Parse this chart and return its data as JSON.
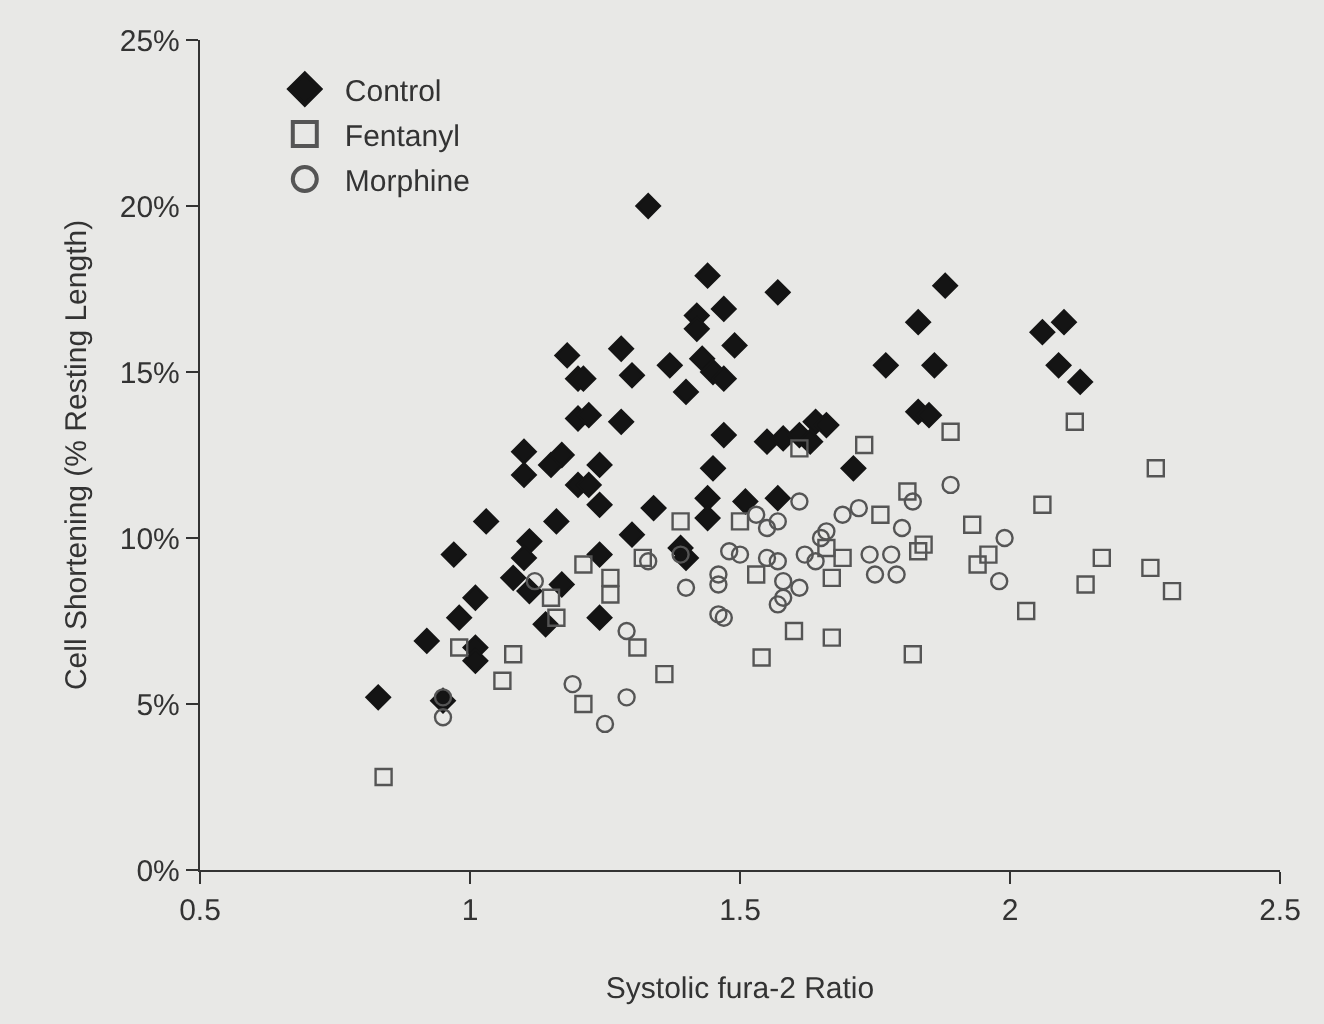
{
  "chart_data": {
    "type": "scatter",
    "xlabel": "Systolic fura-2 Ratio",
    "ylabel": "Cell Shortening (% Resting Length)",
    "xlim": [
      0.5,
      2.5
    ],
    "xticks": [
      0.5,
      1,
      1.5,
      2,
      2.5
    ],
    "ylim": [
      0,
      25
    ],
    "yticks": [
      {
        "value": 0,
        "label": "0%"
      },
      {
        "value": 5,
        "label": "5%"
      },
      {
        "value": 10,
        "label": "10%"
      },
      {
        "value": 15,
        "label": "15%"
      },
      {
        "value": 20,
        "label": "20%"
      },
      {
        "value": 25,
        "label": "25%"
      }
    ],
    "grid": false,
    "legend": "top left",
    "series": [
      {
        "name": "Control",
        "color": "#141414",
        "marker": "diamond",
        "x": [
          0.83,
          0.95,
          0.92,
          1.01,
          1.01,
          0.98,
          1.01,
          0.97,
          1.03,
          1.1,
          1.1,
          1.15,
          1.17,
          1.18,
          1.2,
          1.2,
          1.2,
          1.16,
          1.11,
          1.1,
          1.08,
          1.11,
          1.14,
          1.17,
          1.33,
          1.44,
          1.57,
          1.47,
          1.42,
          1.42,
          1.49,
          1.28,
          1.21,
          1.3,
          1.37,
          1.43,
          1.45,
          1.47,
          1.4,
          1.22,
          1.28,
          1.47,
          1.55,
          1.58,
          1.61,
          1.64,
          1.66,
          1.63,
          1.71,
          1.45,
          1.24,
          1.22,
          1.24,
          1.34,
          1.44,
          1.44,
          1.51,
          1.57,
          1.3,
          1.24,
          1.39,
          1.4,
          1.24,
          1.88,
          1.83,
          1.86,
          1.83,
          1.85,
          2.06,
          2.1,
          2.09,
          2.13,
          1.77
        ],
        "values": [
          5.2,
          5.1,
          6.9,
          6.7,
          6.3,
          7.6,
          8.2,
          9.5,
          10.5,
          12.6,
          11.9,
          12.2,
          12.5,
          15.5,
          14.8,
          13.6,
          11.6,
          10.5,
          9.9,
          9.4,
          8.8,
          8.4,
          7.4,
          8.6,
          20.0,
          17.9,
          17.4,
          16.9,
          16.7,
          16.3,
          15.8,
          15.7,
          14.8,
          14.9,
          15.2,
          15.4,
          15.0,
          14.8,
          14.4,
          13.7,
          13.5,
          13.1,
          12.9,
          13.0,
          13.1,
          13.5,
          13.4,
          12.9,
          12.1,
          12.1,
          12.2,
          11.6,
          11.0,
          10.9,
          11.2,
          10.6,
          11.1,
          11.2,
          10.1,
          9.5,
          9.7,
          9.4,
          7.6,
          17.6,
          16.5,
          15.2,
          13.8,
          13.7,
          16.2,
          16.5,
          15.2,
          14.7,
          15.2
        ]
      },
      {
        "name": "Fentanyl",
        "color": "#555555",
        "marker": "square",
        "x": [
          0.84,
          0.98,
          1.08,
          1.06,
          1.15,
          1.16,
          1.21,
          1.21,
          1.26,
          1.26,
          1.31,
          1.36,
          1.32,
          1.39,
          1.5,
          1.54,
          1.53,
          1.6,
          1.67,
          1.61,
          1.73,
          1.66,
          1.69,
          1.67,
          1.76,
          1.81,
          1.82,
          1.89,
          1.84,
          1.83,
          1.93,
          1.94,
          1.96,
          2.03,
          2.06,
          2.12,
          2.17,
          2.14,
          2.27,
          2.26,
          2.3
        ],
        "values": [
          2.8,
          6.7,
          6.5,
          5.7,
          8.2,
          7.6,
          9.2,
          5.0,
          8.8,
          8.3,
          6.7,
          5.9,
          9.4,
          10.5,
          10.5,
          6.4,
          8.9,
          7.2,
          7.0,
          12.7,
          12.8,
          9.7,
          9.4,
          8.8,
          10.7,
          11.4,
          6.5,
          13.2,
          9.8,
          9.6,
          10.4,
          9.2,
          9.5,
          7.8,
          11.0,
          13.5,
          9.4,
          8.6,
          12.1,
          9.1,
          8.4
        ]
      },
      {
        "name": "Morphine",
        "color": "#555555",
        "marker": "circle",
        "x": [
          0.95,
          0.95,
          1.12,
          1.19,
          1.25,
          1.29,
          1.29,
          1.33,
          1.4,
          1.39,
          1.46,
          1.46,
          1.46,
          1.47,
          1.48,
          1.5,
          1.53,
          1.55,
          1.57,
          1.61,
          1.55,
          1.57,
          1.58,
          1.61,
          1.57,
          1.58,
          1.62,
          1.65,
          1.64,
          1.66,
          1.69,
          1.72,
          1.74,
          1.75,
          1.78,
          1.79,
          1.8,
          1.82,
          1.89,
          1.99,
          1.98
        ],
        "values": [
          5.2,
          4.6,
          8.7,
          5.6,
          4.4,
          5.2,
          7.2,
          9.3,
          8.5,
          9.5,
          8.9,
          8.6,
          7.7,
          7.6,
          9.6,
          9.5,
          10.7,
          10.3,
          10.5,
          11.1,
          9.4,
          9.3,
          8.7,
          8.5,
          8.0,
          8.2,
          9.5,
          10.0,
          9.3,
          10.2,
          10.7,
          10.9,
          9.5,
          8.9,
          9.5,
          8.9,
          10.3,
          11.1,
          11.6,
          10.0,
          8.7
        ]
      }
    ]
  }
}
